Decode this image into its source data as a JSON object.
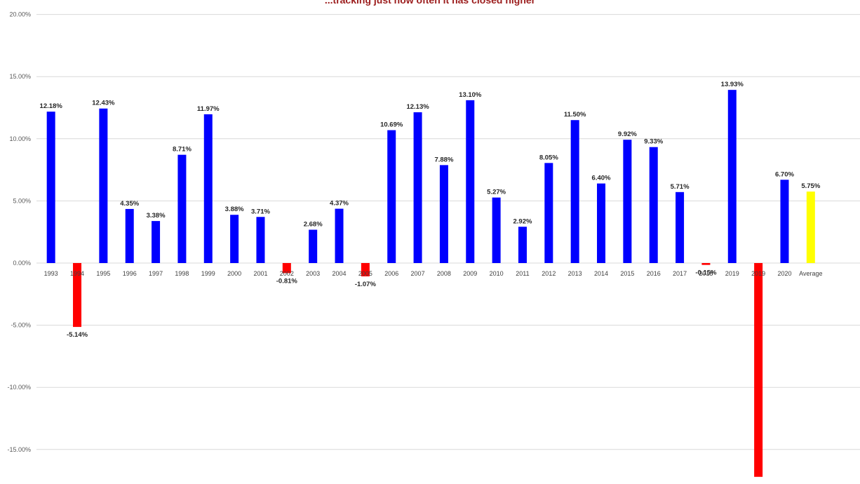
{
  "chart_data": {
    "type": "bar",
    "title": "...tracking just how often it has closed higher",
    "xlabel": "",
    "ylabel": "",
    "ylim": [
      -17.5,
      20
    ],
    "y_ticks": [
      20,
      15,
      10,
      5,
      0,
      -5,
      -10,
      -15
    ],
    "y_tick_labels": [
      "20.00%",
      "15.00%",
      "10.00%",
      "5.00%",
      "0.00%",
      "-5.00%",
      "-10.00%",
      "-15.00%"
    ],
    "grid": true,
    "legend": "none",
    "categories": [
      "1993",
      "1994",
      "1995",
      "1996",
      "1997",
      "1998",
      "1999",
      "2000",
      "2001",
      "2002",
      "2003",
      "2004",
      "2005",
      "2006",
      "2007",
      "2008",
      "2009",
      "2010",
      "2011",
      "2012",
      "2013",
      "2014",
      "2015",
      "2016",
      "2017",
      "2018",
      "2019",
      "2019",
      "2020",
      "Average"
    ],
    "values": [
      12.18,
      -5.14,
      12.43,
      4.35,
      3.38,
      8.71,
      11.97,
      3.88,
      3.71,
      -0.81,
      2.68,
      4.37,
      -1.07,
      10.69,
      12.13,
      7.88,
      13.1,
      5.27,
      2.92,
      8.05,
      11.5,
      6.4,
      9.92,
      9.33,
      5.71,
      -0.15,
      13.93,
      -17.2,
      6.7,
      5.75
    ],
    "labels": [
      "12.18%",
      "-5.14%",
      "12.43%",
      "4.35%",
      "3.38%",
      "8.71%",
      "11.97%",
      "3.88%",
      "3.71%",
      "-0.81%",
      "2.68%",
      "4.37%",
      "-1.07%",
      "10.69%",
      "12.13%",
      "7.88%",
      "13.10%",
      "5.27%",
      "2.92%",
      "8.05%",
      "11.50%",
      "6.40%",
      "9.92%",
      "9.33%",
      "5.71%",
      "-0.15%",
      "13.93%",
      "",
      "6.70%",
      "5.75%"
    ],
    "colors": {
      "positive": "#0000ff",
      "negative": "#ff0000",
      "average": "#ffff00"
    }
  }
}
